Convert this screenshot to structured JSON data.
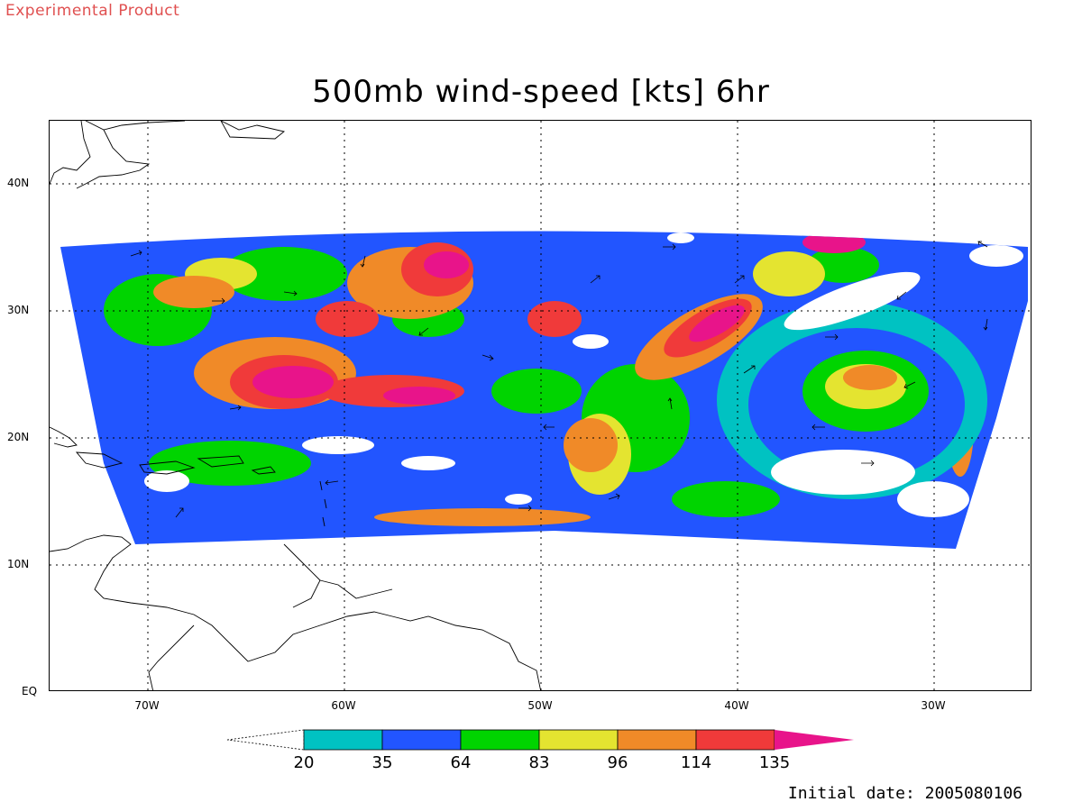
{
  "watermark": "Experimental Product",
  "title": "500mb wind-speed [kts] 6hr",
  "y_labels": [
    "40N",
    "30N",
    "20N",
    "10N",
    "EQ"
  ],
  "x_labels": [
    "70W",
    "60W",
    "50W",
    "40W",
    "30W"
  ],
  "colorbar": {
    "levels": [
      "20",
      "35",
      "64",
      "83",
      "96",
      "114",
      "135"
    ],
    "colors": [
      "#00c2c2",
      "#2255ff",
      "#00d400",
      "#e4e430",
      "#f08a28",
      "#f03a3a",
      "#e8148a"
    ]
  },
  "initial_date": "Initial date: 2005080106",
  "chart_data": {
    "type": "heatmap",
    "title": "500mb wind-speed [kts] 6hr",
    "lon_range": [
      -75,
      -25
    ],
    "lat_range": [
      0,
      45
    ],
    "x_ticks": [
      "70W",
      "60W",
      "50W",
      "40W",
      "30W"
    ],
    "y_ticks": [
      "40N",
      "30N",
      "20N",
      "10N",
      "EQ"
    ],
    "grid": true,
    "contour_levels": [
      20,
      35,
      64,
      83,
      96,
      114,
      135
    ],
    "contour_colors": [
      "#00c2c2",
      "#2255ff",
      "#00d400",
      "#e4e430",
      "#f08a28",
      "#f03a3a",
      "#e8148a"
    ],
    "legend": "bottom"
  }
}
